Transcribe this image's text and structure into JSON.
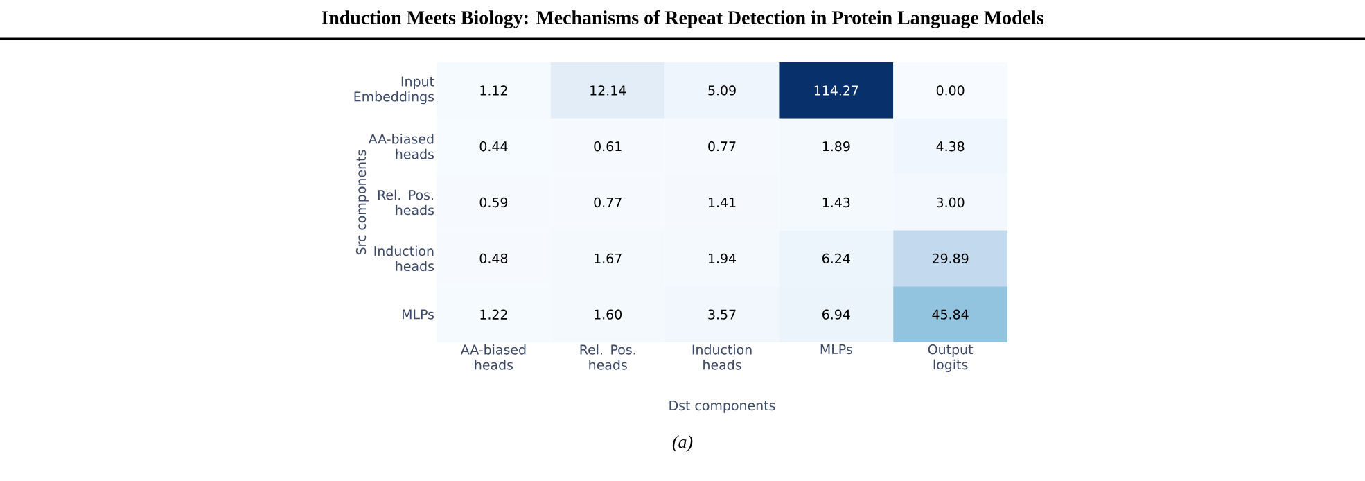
{
  "chart_data": {
    "type": "heatmap",
    "title": "Induction Meets Biology: Mechanisms of Repeat Detection in Protein Language Models",
    "xlabel": "Dst components",
    "ylabel": "Src components",
    "categories": [
      "AA-biased heads",
      "Rel. Pos. heads",
      "Induction heads",
      "MLPs",
      "Output logits"
    ],
    "y_categories": [
      "Input Embeddings",
      "AA-biased heads",
      "Rel. Pos. heads",
      "Induction heads",
      "MLPs"
    ],
    "cells": [
      [
        1.12,
        12.14,
        5.09,
        114.27,
        0.0
      ],
      [
        0.44,
        0.61,
        0.77,
        1.89,
        4.38
      ],
      [
        0.59,
        0.77,
        1.41,
        1.43,
        3.0
      ],
      [
        0.48,
        1.67,
        1.94,
        6.24,
        29.89
      ],
      [
        1.22,
        1.6,
        3.57,
        6.94,
        45.84
      ]
    ],
    "cell_labels": [
      [
        "1.12",
        "12.14",
        "5.09",
        "114.27",
        "0.00"
      ],
      [
        "0.44",
        "0.61",
        "0.77",
        "1.89",
        "4.38"
      ],
      [
        "0.59",
        "0.77",
        "1.41",
        "1.43",
        "3.00"
      ],
      [
        "0.48",
        "1.67",
        "1.94",
        "6.24",
        "29.89"
      ],
      [
        "1.22",
        "1.60",
        "3.57",
        "6.94",
        "45.84"
      ]
    ],
    "annotations": [
      "(a)"
    ]
  }
}
